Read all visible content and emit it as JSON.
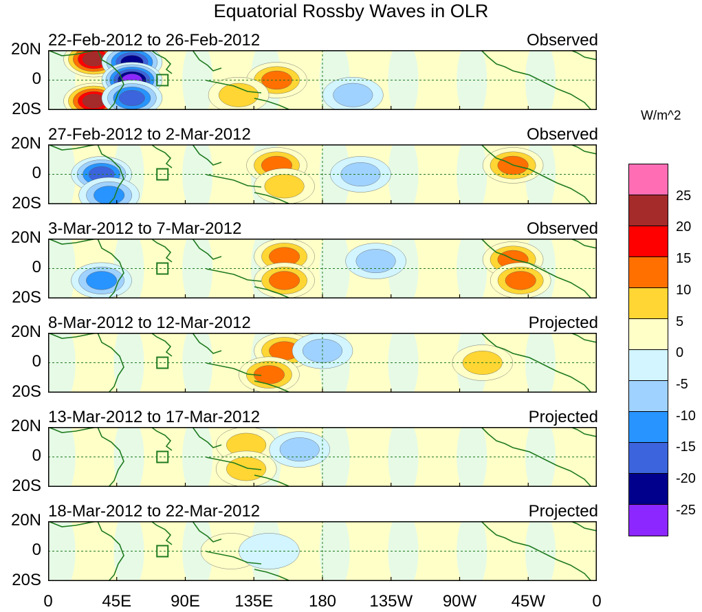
{
  "title": "Equatorial Rossby Waves in OLR",
  "units": "W/m^2",
  "x_ticks": [
    "0",
    "45E",
    "90E",
    "135E",
    "180",
    "135W",
    "90W",
    "45W",
    "0"
  ],
  "y_ticks": [
    "20N",
    "0",
    "20S"
  ],
  "colorbar": {
    "labels": [
      "25",
      "20",
      "15",
      "10",
      "5",
      "0",
      "-5",
      "-10",
      "-15",
      "-20",
      "-25"
    ],
    "colors": [
      "#ff6eb4",
      "#a52a2a",
      "#ff0000",
      "#ff7000",
      "#ffd633",
      "#ffffc8",
      "#d2f5ff",
      "#a0d2ff",
      "#2894ff",
      "#3c64dc",
      "#00008c",
      "#8c28ff"
    ]
  },
  "panels": [
    {
      "dates": "22-Feb-2012 to 26-Feb-2012",
      "kind": "Observed"
    },
    {
      "dates": "27-Feb-2012 to 2-Mar-2012",
      "kind": "Observed"
    },
    {
      "dates": "3-Mar-2012 to 7-Mar-2012",
      "kind": "Observed"
    },
    {
      "dates": "8-Mar-2012 to 12-Mar-2012",
      "kind": "Projected"
    },
    {
      "dates": "13-Mar-2012 to 17-Mar-2012",
      "kind": "Projected"
    },
    {
      "dates": "18-Mar-2012 to 22-Mar-2012",
      "kind": "Projected"
    }
  ],
  "chart_data": {
    "type": "heatmap",
    "title": "Equatorial Rossby Waves in OLR",
    "colorbar_label": "W/m^2",
    "lon_range": [
      0,
      360
    ],
    "lat_range": [
      -20,
      20
    ],
    "levels": [
      -25,
      -20,
      -15,
      -10,
      -5,
      0,
      5,
      10,
      15,
      20,
      25
    ],
    "panels": [
      {
        "dates": "22-Feb-2012 to 26-Feb-2012",
        "kind": "Observed",
        "anomalies": [
          {
            "lon": 30,
            "lat": 14,
            "value": 22
          },
          {
            "lon": 30,
            "lat": -14,
            "value": 22
          },
          {
            "lon": 55,
            "lat": 12,
            "value": -25
          },
          {
            "lon": 55,
            "lat": 0,
            "value": -27
          },
          {
            "lon": 55,
            "lat": -12,
            "value": -20
          },
          {
            "lon": 150,
            "lat": 0,
            "value": 12
          },
          {
            "lon": 125,
            "lat": -10,
            "value": 8
          },
          {
            "lon": 200,
            "lat": -10,
            "value": -10
          }
        ]
      },
      {
        "dates": "27-Feb-2012 to 2-Mar-2012",
        "kind": "Observed",
        "anomalies": [
          {
            "lon": 35,
            "lat": 0,
            "value": -18
          },
          {
            "lon": 40,
            "lat": -14,
            "value": -15
          },
          {
            "lon": 150,
            "lat": 6,
            "value": 12
          },
          {
            "lon": 155,
            "lat": -8,
            "value": 10
          },
          {
            "lon": 305,
            "lat": 6,
            "value": 12
          },
          {
            "lon": 205,
            "lat": 0,
            "value": -8
          }
        ]
      },
      {
        "dates": "3-Mar-2012 to 7-Mar-2012",
        "kind": "Observed",
        "anomalies": [
          {
            "lon": 155,
            "lat": 8,
            "value": 15
          },
          {
            "lon": 155,
            "lat": -8,
            "value": 15
          },
          {
            "lon": 305,
            "lat": 6,
            "value": 12
          },
          {
            "lon": 310,
            "lat": -8,
            "value": 12
          },
          {
            "lon": 35,
            "lat": -8,
            "value": -12
          },
          {
            "lon": 215,
            "lat": 5,
            "value": -7
          }
        ]
      },
      {
        "dates": "8-Mar-2012 to 12-Mar-2012",
        "kind": "Projected",
        "anomalies": [
          {
            "lon": 155,
            "lat": 8,
            "value": 14
          },
          {
            "lon": 145,
            "lat": -8,
            "value": 12
          },
          {
            "lon": 180,
            "lat": 8,
            "value": -10
          },
          {
            "lon": 285,
            "lat": 0,
            "value": 6
          }
        ]
      },
      {
        "dates": "13-Mar-2012 to 17-Mar-2012",
        "kind": "Projected",
        "anomalies": [
          {
            "lon": 130,
            "lat": 8,
            "value": 7
          },
          {
            "lon": 130,
            "lat": -8,
            "value": 6
          },
          {
            "lon": 165,
            "lat": 5,
            "value": -6
          }
        ]
      },
      {
        "dates": "18-Mar-2012 to 22-Mar-2012",
        "kind": "Projected",
        "anomalies": [
          {
            "lon": 120,
            "lat": 0,
            "value": 3
          },
          {
            "lon": 145,
            "lat": 0,
            "value": -5
          }
        ]
      }
    ]
  }
}
